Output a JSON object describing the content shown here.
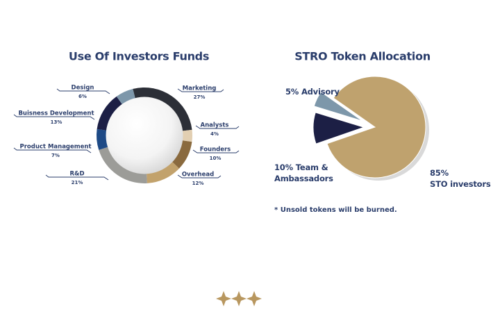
{
  "chart_data": [
    {
      "type": "donut",
      "title": "Use Of Investors Funds",
      "categories": [
        "Marketing",
        "Analysts",
        "Founders",
        "Overhead",
        "R&D",
        "Product Management",
        "Buisness Development",
        "Design"
      ],
      "values": [
        27,
        4,
        10,
        12,
        21,
        7,
        13,
        6
      ],
      "value_labels": [
        "27%",
        "4%",
        "10%",
        "12%",
        "21%",
        "7%",
        "13%",
        "6%"
      ],
      "colors": [
        "#2c2f37",
        "#e2cfb2",
        "#8a6a3e",
        "#c2a26c",
        "#9c9c98",
        "#1e4a86",
        "#1c1f45",
        "#7d97aa"
      ]
    },
    {
      "type": "pie",
      "title": "STRO Token Allocation",
      "categories": [
        "STO investors",
        "Team & Ambassadors",
        "Advisory"
      ],
      "values": [
        85,
        10,
        5
      ],
      "value_labels": [
        "85%",
        "10%",
        "5%"
      ],
      "colors": [
        "#bfa26e",
        "#1c1f45",
        "#7d97aa"
      ],
      "note": "* Unsold tokens will be burned."
    }
  ]
}
